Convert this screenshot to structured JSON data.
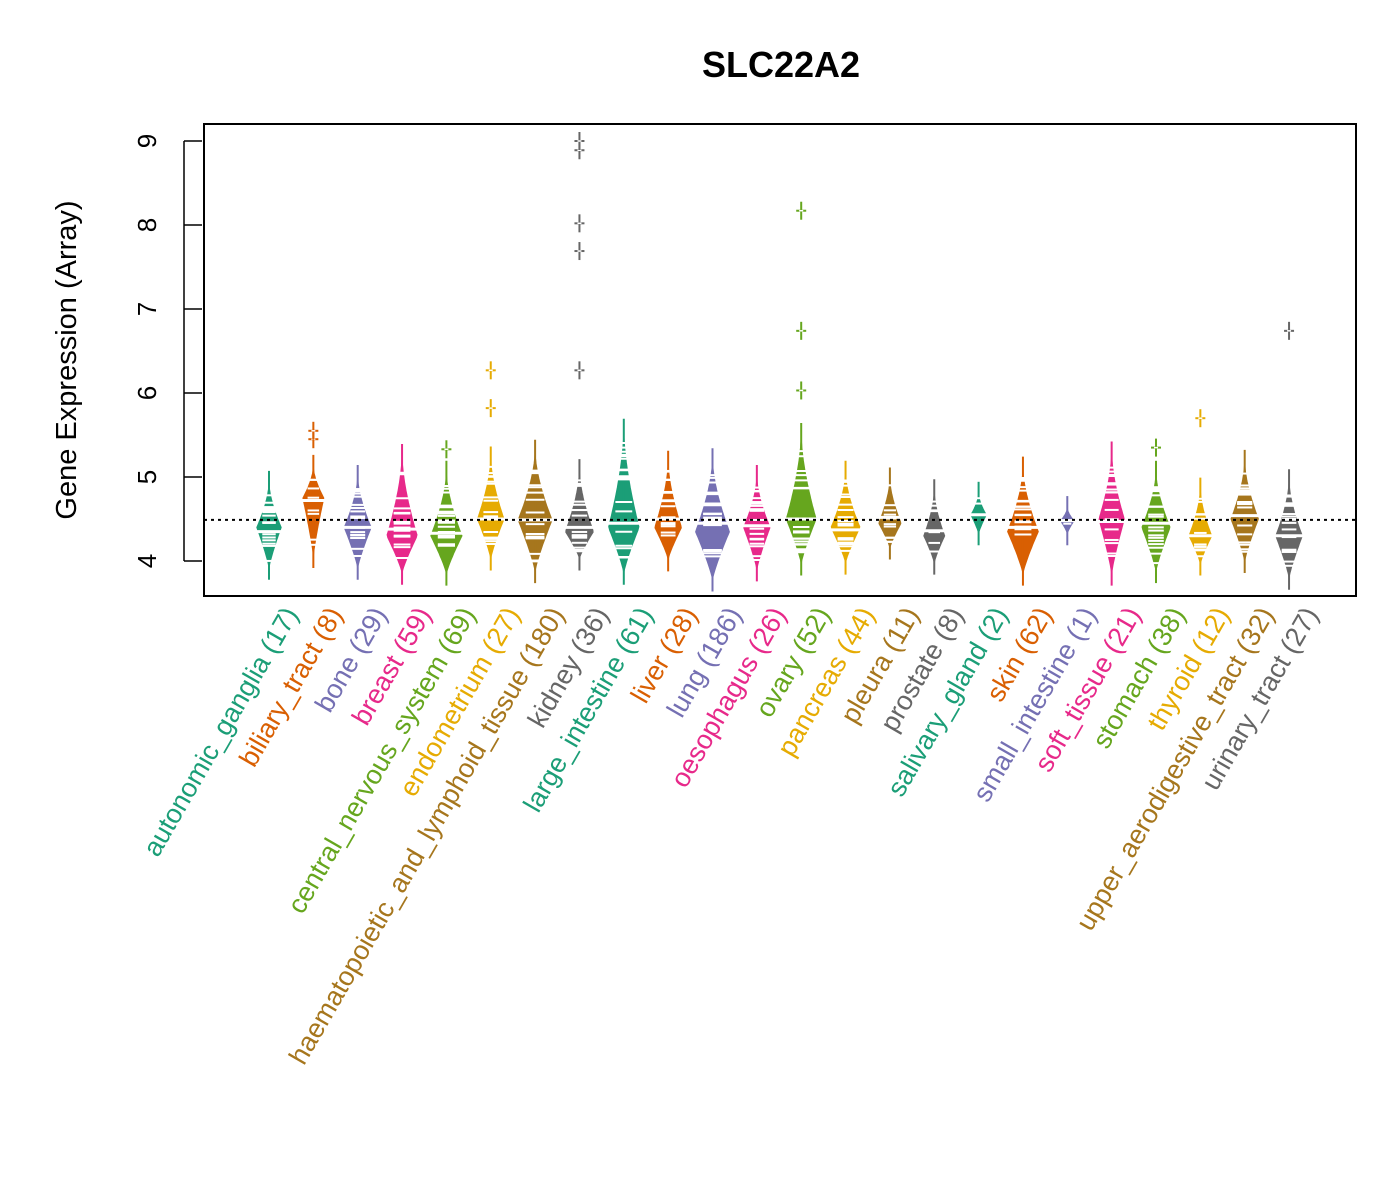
{
  "chart_data": {
    "type": "beanplot",
    "title": "SLC22A2",
    "xlabel": "",
    "ylabel": "Gene Expression (Array)",
    "ylim": [
      3.6,
      9.2
    ],
    "yticks": [
      4,
      5,
      6,
      7,
      8,
      9
    ],
    "grid": false,
    "legend": "none",
    "overall_reference_line": 4.49,
    "palette": [
      "#1B9E77",
      "#D95F02",
      "#7570B3",
      "#E7298A",
      "#66A61E",
      "#E6AB02",
      "#A6761D",
      "#666666"
    ],
    "categories": [
      {
        "name": "autonomic_ganglia",
        "n": 17,
        "label": "autonomic_ganglia (17)",
        "color": "#1B9E77",
        "min": 3.92,
        "max": 4.93,
        "median": 4.35,
        "peak": 4.4,
        "outliers": []
      },
      {
        "name": "biliary_tract",
        "n": 8,
        "label": "biliary_tract (8)",
        "color": "#D95F02",
        "min": 4.06,
        "max": 5.12,
        "median": 4.72,
        "peak": 4.75,
        "outliers": [
          5.45,
          5.55
        ]
      },
      {
        "name": "bone",
        "n": 29,
        "label": "bone (29)",
        "color": "#7570B3",
        "min": 3.92,
        "max": 5.0,
        "median": 4.4,
        "peak": 4.4,
        "outliers": []
      },
      {
        "name": "breast",
        "n": 59,
        "label": "breast (59)",
        "color": "#E7298A",
        "min": 3.86,
        "max": 5.25,
        "median": 4.38,
        "peak": 4.3,
        "outliers": []
      },
      {
        "name": "central_nervous_system",
        "n": 69,
        "label": "central_nervous_system (69)",
        "color": "#66A61E",
        "min": 3.85,
        "max": 5.05,
        "median": 4.33,
        "peak": 4.3,
        "outliers": [
          5.33
        ]
      },
      {
        "name": "endometrium",
        "n": 27,
        "label": "endometrium (27)",
        "color": "#E6AB02",
        "min": 4.03,
        "max": 5.22,
        "median": 4.5,
        "peak": 4.5,
        "outliers": [
          5.82,
          6.27
        ]
      },
      {
        "name": "haematopoietic_and_lymphoid_tissue",
        "n": 180,
        "label": "haematopoietic_and_lymphoid_tissue (180)",
        "color": "#A6761D",
        "min": 3.88,
        "max": 5.3,
        "median": 4.49,
        "peak": 4.49,
        "outliers": []
      },
      {
        "name": "kidney",
        "n": 36,
        "label": "kidney (36)",
        "color": "#666666",
        "min": 4.03,
        "max": 5.07,
        "median": 4.4,
        "peak": 4.35,
        "outliers": [
          6.27,
          7.69,
          8.02,
          8.89,
          9.0
        ]
      },
      {
        "name": "large_intestine",
        "n": 61,
        "label": "large_intestine (61)",
        "color": "#1B9E77",
        "min": 3.86,
        "max": 5.55,
        "median": 4.45,
        "peak": 4.4,
        "outliers": []
      },
      {
        "name": "liver",
        "n": 28,
        "label": "liver (28)",
        "color": "#D95F02",
        "min": 4.02,
        "max": 5.17,
        "median": 4.5,
        "peak": 4.4,
        "outliers": []
      },
      {
        "name": "lung",
        "n": 186,
        "label": "lung (186)",
        "color": "#7570B3",
        "min": 3.78,
        "max": 5.2,
        "median": 4.45,
        "peak": 4.35,
        "outliers": []
      },
      {
        "name": "oesophagus",
        "n": 26,
        "label": "oesophagus (26)",
        "color": "#E7298A",
        "min": 3.9,
        "max": 5.0,
        "median": 4.42,
        "peak": 4.4,
        "outliers": []
      },
      {
        "name": "ovary",
        "n": 52,
        "label": "ovary (52)",
        "color": "#66A61E",
        "min": 3.97,
        "max": 5.5,
        "median": 4.5,
        "peak": 4.5,
        "outliers": [
          6.03,
          6.74,
          8.17
        ]
      },
      {
        "name": "pancreas",
        "n": 44,
        "label": "pancreas (44)",
        "color": "#E6AB02",
        "min": 3.98,
        "max": 5.05,
        "median": 4.37,
        "peak": 4.4,
        "outliers": []
      },
      {
        "name": "pleura",
        "n": 11,
        "label": "pleura (11)",
        "color": "#A6761D",
        "min": 4.16,
        "max": 4.97,
        "median": 4.52,
        "peak": 4.45,
        "outliers": []
      },
      {
        "name": "prostate",
        "n": 8,
        "label": "prostate (8)",
        "color": "#666666",
        "min": 3.98,
        "max": 4.83,
        "median": 4.36,
        "peak": 4.3,
        "outliers": []
      },
      {
        "name": "salivary_gland",
        "n": 2,
        "label": "salivary_gland (2)",
        "color": "#1B9E77",
        "min": 4.33,
        "max": 4.8,
        "median": 4.55,
        "peak": 4.55,
        "outliers": []
      },
      {
        "name": "skin",
        "n": 62,
        "label": "skin (62)",
        "color": "#D95F02",
        "min": 3.85,
        "max": 5.1,
        "median": 4.4,
        "peak": 4.35,
        "outliers": []
      },
      {
        "name": "small_intestine",
        "n": 1,
        "label": "small_intestine (1)",
        "color": "#7570B3",
        "min": 4.33,
        "max": 4.63,
        "median": 4.48,
        "peak": 4.48,
        "outliers": []
      },
      {
        "name": "soft_tissue",
        "n": 21,
        "label": "soft_tissue (21)",
        "color": "#E7298A",
        "min": 3.85,
        "max": 5.28,
        "median": 4.47,
        "peak": 4.5,
        "outliers": []
      },
      {
        "name": "stomach",
        "n": 38,
        "label": "stomach (38)",
        "color": "#66A61E",
        "min": 3.88,
        "max": 5.05,
        "median": 4.45,
        "peak": 4.4,
        "outliers": [
          5.35
        ]
      },
      {
        "name": "thyroid",
        "n": 12,
        "label": "thyroid (12)",
        "color": "#E6AB02",
        "min": 3.97,
        "max": 4.85,
        "median": 4.3,
        "peak": 4.3,
        "outliers": [
          5.7
        ]
      },
      {
        "name": "upper_aerodigestive_tract",
        "n": 32,
        "label": "upper_aerodigestive_tract (32)",
        "color": "#A6761D",
        "min": 4.0,
        "max": 5.18,
        "median": 4.54,
        "peak": 4.5,
        "outliers": []
      },
      {
        "name": "urinary_tract",
        "n": 27,
        "label": "urinary_tract (27)",
        "color": "#666666",
        "min": 3.8,
        "max": 4.95,
        "median": 4.3,
        "peak": 4.3,
        "outliers": [
          6.74
        ]
      }
    ]
  }
}
